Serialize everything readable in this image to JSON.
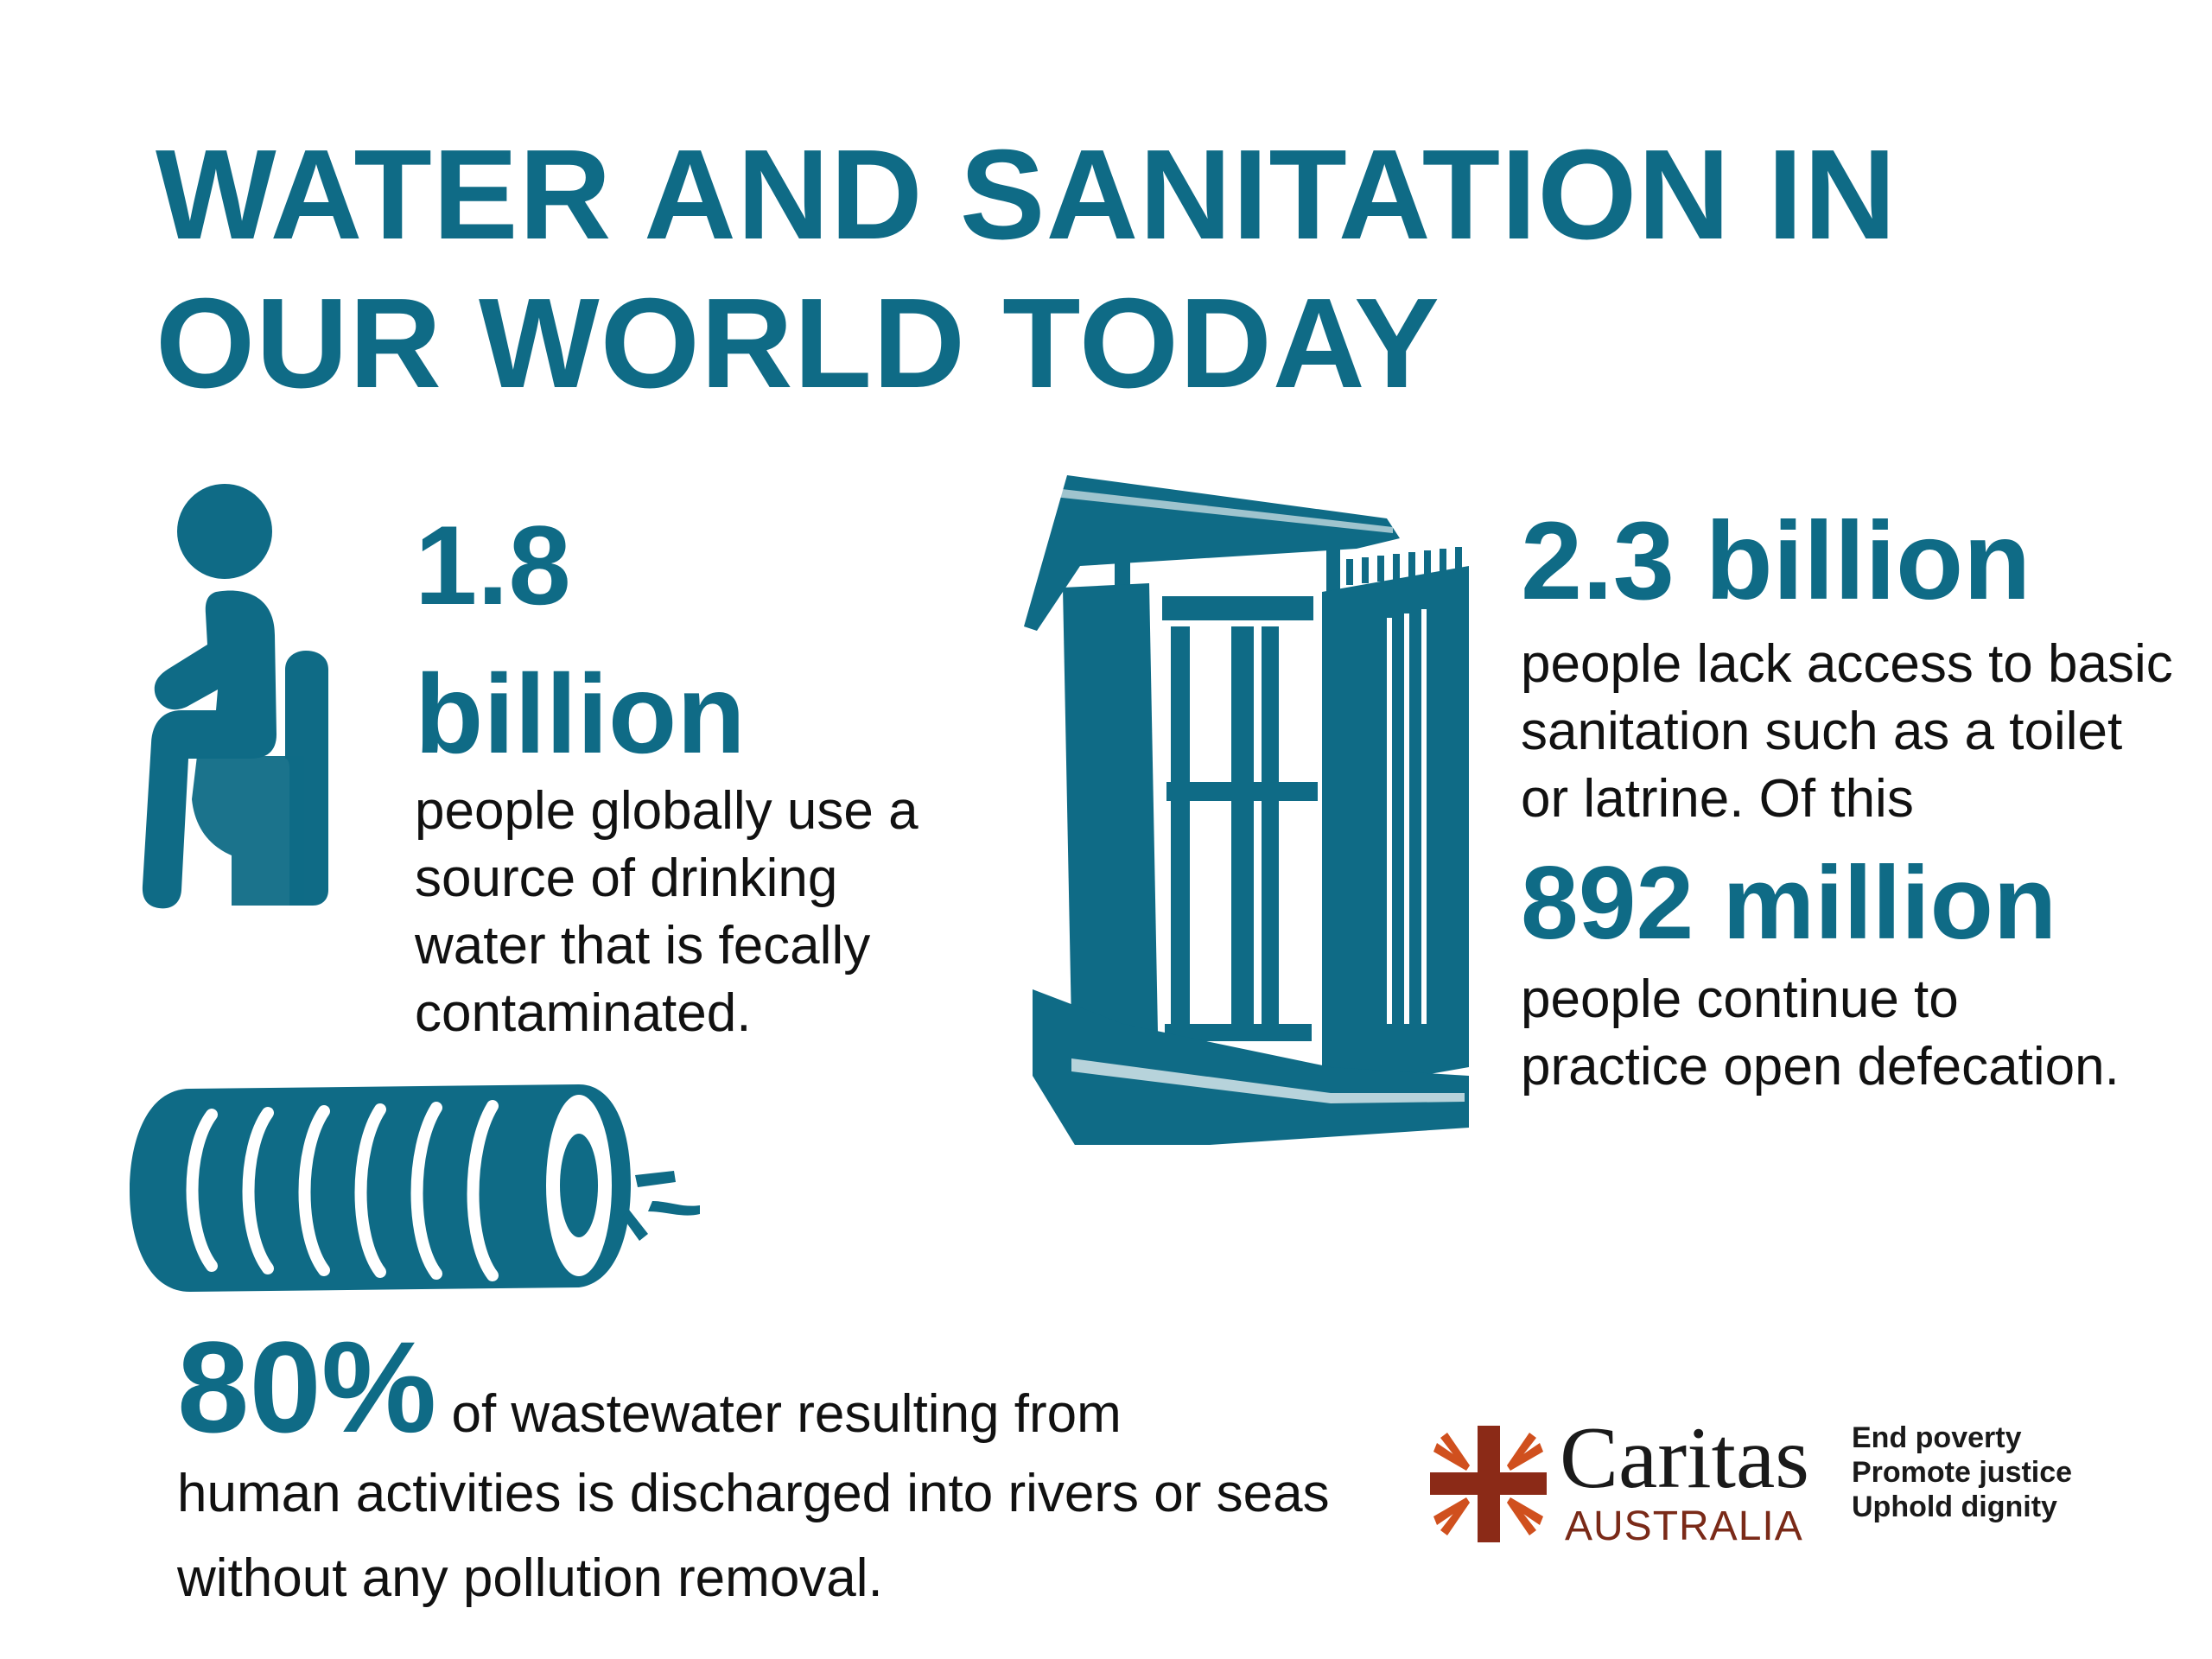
{
  "title": {
    "line1": "WATER AND SANITATION IN",
    "line2": "OUR WORLD TODAY"
  },
  "stat1": {
    "number_line1": "1.8",
    "number_line2": "billion",
    "text": "people globally use a source of drinking water that is fecally contaminated."
  },
  "stat2": {
    "number": "2.3 billion",
    "text": "people lack access to basic sanitation such as a toilet or latrine. Of this",
    "number2": "892 million",
    "text2": "people continue to practice open defecation."
  },
  "stat3": {
    "number": "80%",
    "text_line1": " of wastewater resulting from",
    "text_rest": "human activities is discharged into rivers or seas without any pollution removal."
  },
  "logo": {
    "name": "Caritas",
    "sub": "AUSTRALIA",
    "tagline": [
      "End poverty",
      "Promote justice",
      "Uphold dignity"
    ]
  },
  "colors": {
    "accent": "#0f6b86",
    "logo_red": "#8b2a17",
    "logo_orange": "#d0501e"
  },
  "icons": [
    "toilet-person-icon",
    "latrine-icon",
    "pipe-icon",
    "caritas-cross-icon"
  ]
}
